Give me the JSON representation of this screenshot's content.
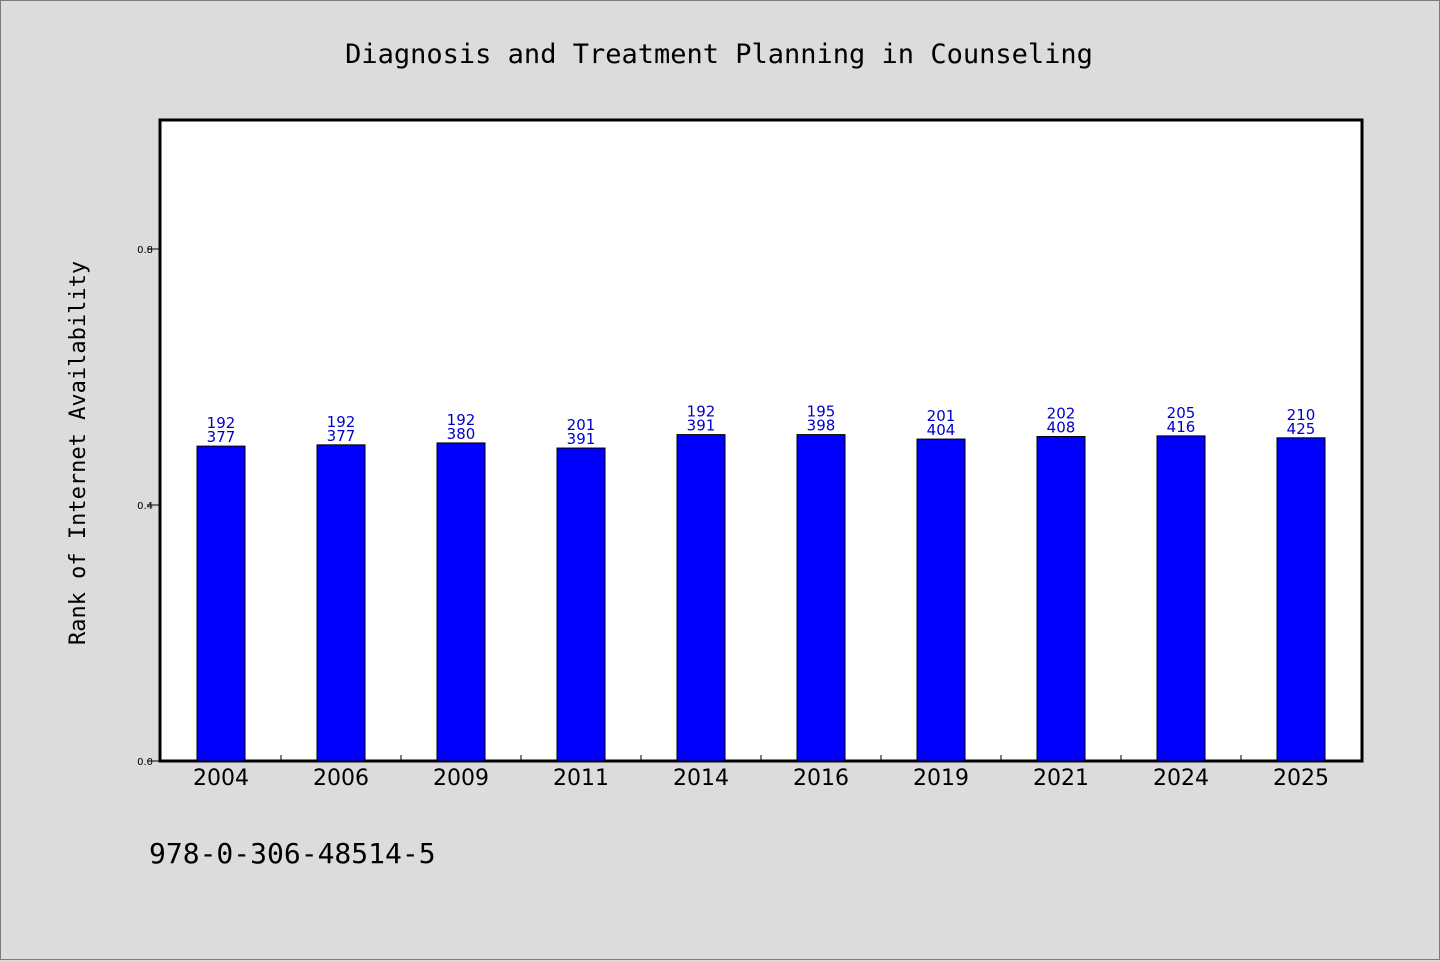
{
  "chart_data": {
    "type": "bar",
    "title": "Diagnosis and Treatment Planning in Counseling",
    "xlabel": "",
    "ylabel": "Rank of Internet Availability",
    "categories": [
      "2004",
      "2006",
      "2009",
      "2011",
      "2014",
      "2016",
      "2019",
      "2021",
      "2024",
      "2025"
    ],
    "values": [
      0.492,
      0.494,
      0.497,
      0.489,
      0.51,
      0.51,
      0.503,
      0.507,
      0.508,
      0.505
    ],
    "labels_top": [
      "192",
      "192",
      "192",
      "201",
      "192",
      "195",
      "201",
      "202",
      "205",
      "210"
    ],
    "labels_bottom": [
      "377",
      "377",
      "380",
      "391",
      "391",
      "398",
      "404",
      "408",
      "416",
      "425"
    ],
    "ylim": [
      0,
      1.0
    ],
    "yticks": [
      "0.0",
      "0.4",
      "0.8"
    ],
    "ytick_values": [
      0,
      0.4,
      0.8
    ],
    "bar_color": "#0000ff",
    "label_color": "#0000cc",
    "grid": false,
    "legend": "none"
  },
  "footer": {
    "isbn": "978-0-306-48514-5"
  }
}
